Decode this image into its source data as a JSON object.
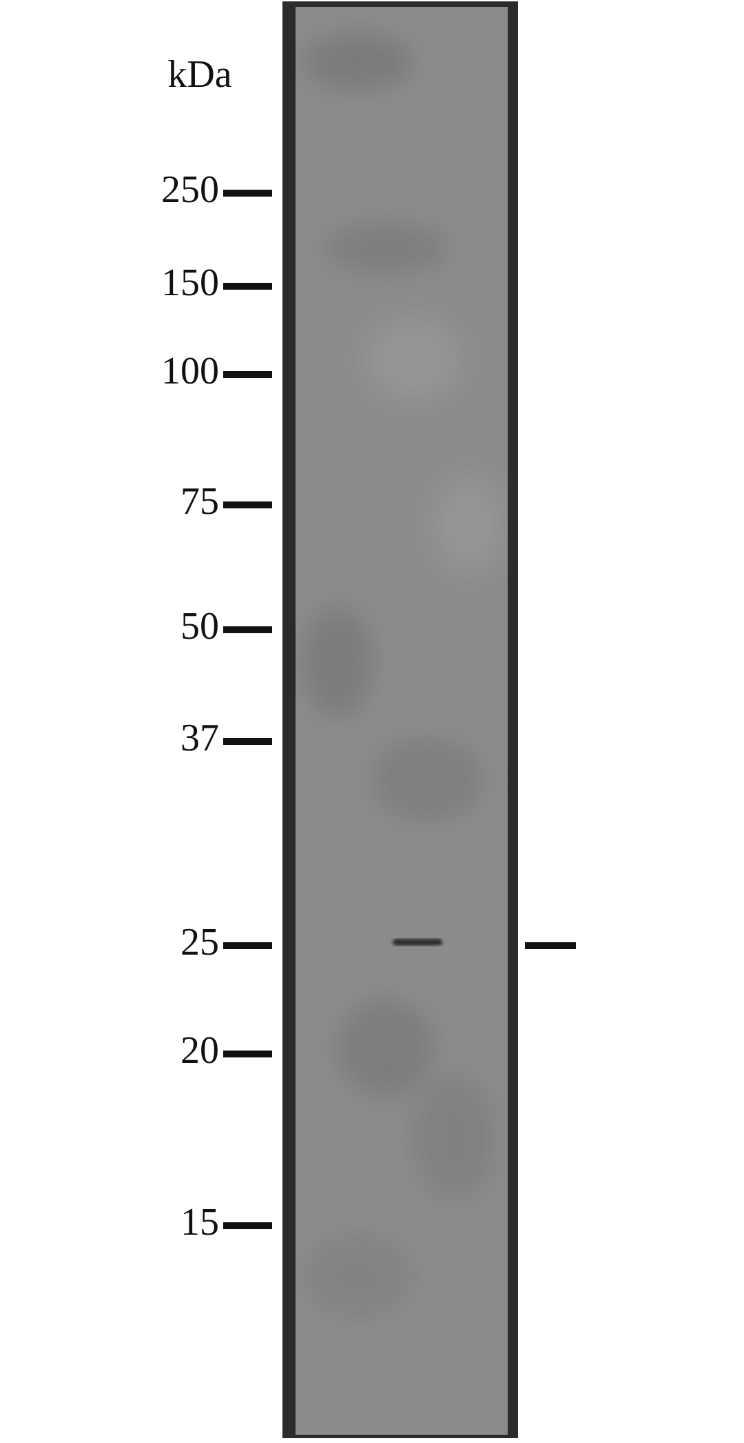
{
  "unit_label": "kDa",
  "markers": [
    "250",
    "150",
    "100",
    "75",
    "50",
    "37",
    "25",
    "20",
    "15"
  ]
}
